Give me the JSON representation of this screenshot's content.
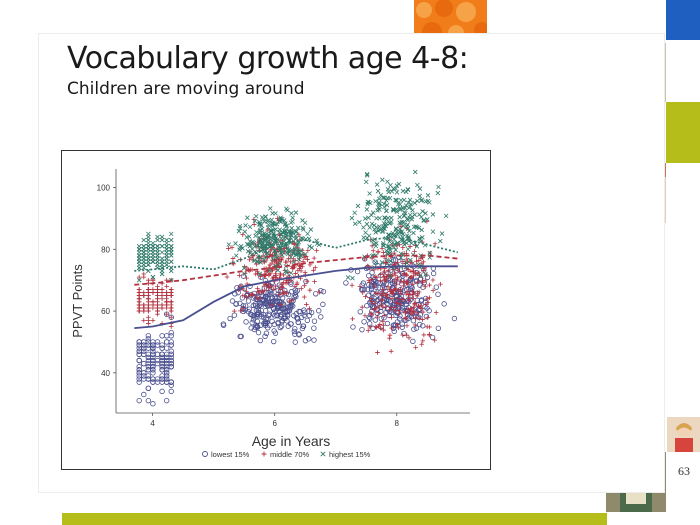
{
  "slide": {
    "title": "Vocabulary growth age 4-8:",
    "subtitle": "Children are moving around",
    "page_number": "63"
  },
  "colors": {
    "lowest": "#4a4f8f",
    "middle": "#b3303f",
    "highest": "#2f7a6a",
    "accent_orange": "#f07d19",
    "accent_blue": "#5aa5de",
    "accent_green": "#b5bd1b",
    "accent_navy": "#1f5fbf"
  },
  "chart_data": {
    "type": "scatter",
    "xlabel": "Age in Years",
    "ylabel": "PPVT Points",
    "xlim": [
      3.4,
      9.2
    ],
    "ylim": [
      27,
      106
    ],
    "x_ticks": [
      4,
      6,
      8
    ],
    "y_ticks": [
      40,
      60,
      80,
      100
    ],
    "grid": false,
    "legend_position": "bottom",
    "series": [
      {
        "name": "lowest 15%",
        "marker": "circle",
        "clusters": [
          {
            "age": 4,
            "y_min": 28,
            "y_max": 59
          },
          {
            "age": 6,
            "y_min": 47,
            "y_max": 73
          },
          {
            "age": 8,
            "y_min": 49,
            "y_max": 80
          }
        ],
        "fit_line": {
          "style": "solid",
          "x": [
            3.7,
            4.0,
            4.5,
            5.0,
            5.5,
            6.0,
            6.5,
            7.0,
            7.5,
            8.0,
            8.5,
            9.0
          ],
          "y": [
            54.5,
            55,
            57,
            63,
            68,
            70,
            71.5,
            73,
            74,
            74.5,
            74.5,
            74.5
          ]
        }
      },
      {
        "name": "middle 70%",
        "marker": "plus",
        "clusters": [
          {
            "age": 4,
            "y_min": 55,
            "y_max": 72
          },
          {
            "age": 6,
            "y_min": 58,
            "y_max": 90
          },
          {
            "age": 8,
            "y_min": 45,
            "y_max": 92
          }
        ],
        "fit_line": {
          "style": "dashed",
          "x": [
            3.7,
            4.0,
            4.5,
            5.0,
            5.5,
            6.0,
            6.5,
            7.0,
            7.5,
            8.0,
            8.5,
            9.0
          ],
          "y": [
            68.5,
            69,
            70,
            71.5,
            73,
            74,
            75.5,
            76.5,
            77.5,
            78,
            78,
            77
          ]
        }
      },
      {
        "name": "highest 15%",
        "marker": "x",
        "clusters": [
          {
            "age": 4,
            "y_min": 70,
            "y_max": 86
          },
          {
            "age": 6,
            "y_min": 72,
            "y_max": 94
          },
          {
            "age": 8,
            "y_min": 70,
            "y_max": 106
          }
        ],
        "fit_line": {
          "style": "dotted",
          "x": [
            3.7,
            4.0,
            4.5,
            5.0,
            5.5,
            6.0,
            6.5,
            7.0,
            7.5,
            8.0,
            8.5,
            9.0
          ],
          "y": [
            73,
            73.5,
            74.5,
            73.5,
            77,
            81.5,
            83,
            80.5,
            83,
            84,
            81.5,
            79
          ]
        }
      }
    ]
  }
}
